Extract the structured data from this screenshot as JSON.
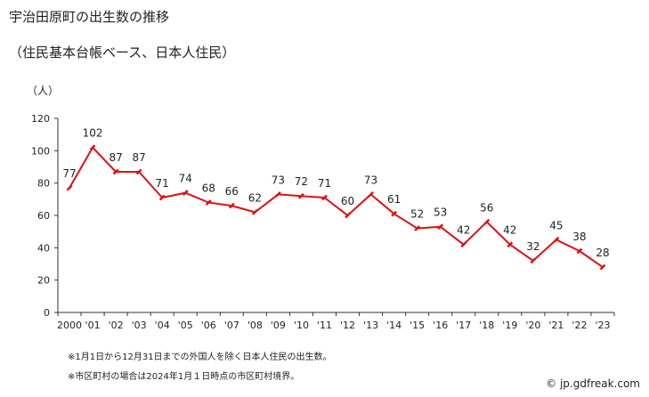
{
  "title": "宇治田原町の出生数の推移",
  "subtitle": "（住民基本台帳ベース、日本人住民）",
  "unit_label": "（人）",
  "notes": [
    "※1月1日から12月31日までの外国人を除く日本人住民の出生数。",
    "※市区町村の場合は2024年1月１日時点の市区町村境界。"
  ],
  "credit": "© jp.gdfreak.com",
  "colors": {
    "line": "#e01010",
    "axis": "#333333",
    "marker": "#e01010"
  },
  "chart_data": {
    "type": "line",
    "title": "宇治田原町の出生数の推移",
    "subtitle": "（住民基本台帳ベース、日本人住民）",
    "ylabel": "（人）",
    "xlabel": "",
    "ylim": [
      0,
      120
    ],
    "yticks": [
      0,
      20,
      40,
      60,
      80,
      100,
      120
    ],
    "grid": false,
    "categories": [
      "2000",
      "'01",
      "'02",
      "'03",
      "'04",
      "'05",
      "'06",
      "'07",
      "'08",
      "'09",
      "'10",
      "'11",
      "'12",
      "'13",
      "'14",
      "'15",
      "'16",
      "'17",
      "'18",
      "'19",
      "'20",
      "'21",
      "'22",
      "'23"
    ],
    "series": [
      {
        "values": [
          77,
          102,
          87,
          87,
          71,
          74,
          68,
          66,
          62,
          73,
          72,
          71,
          60,
          73,
          61,
          52,
          53,
          42,
          56,
          42,
          32,
          45,
          38,
          28
        ]
      }
    ]
  }
}
